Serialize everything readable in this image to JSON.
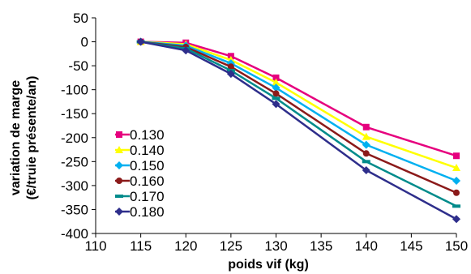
{
  "chart_data": {
    "type": "line",
    "xlabel": "poids vif (kg)",
    "ylabel": [
      "variation de marge",
      "(€/truie présente/an)"
    ],
    "xlim": [
      110,
      150
    ],
    "ylim": [
      -400,
      50
    ],
    "xticks": [
      110,
      115,
      120,
      125,
      130,
      135,
      140,
      145,
      150
    ],
    "yticks": [
      50,
      0,
      -50,
      -100,
      -150,
      -200,
      -250,
      -300,
      -350,
      -400
    ],
    "grid": false,
    "legend_position": "left-middle",
    "x": [
      115,
      120,
      125,
      130,
      140,
      150
    ],
    "series": [
      {
        "name": "0.130",
        "color": "#E6007E",
        "marker": "square",
        "values": [
          0,
          -2,
          -30,
          -75,
          -178,
          -238
        ]
      },
      {
        "name": "0.140",
        "color": "#FFFF00",
        "marker": "triangle",
        "values": [
          0,
          -5,
          -38,
          -85,
          -198,
          -263
        ]
      },
      {
        "name": "0.150",
        "color": "#00B0F0",
        "marker": "diamond",
        "values": [
          0,
          -8,
          -45,
          -96,
          -215,
          -290
        ]
      },
      {
        "name": "0.160",
        "color": "#8B1A1A",
        "marker": "circle",
        "values": [
          0,
          -11,
          -52,
          -108,
          -233,
          -315
        ]
      },
      {
        "name": "0.170",
        "color": "#008B8B",
        "marker": "dash",
        "values": [
          0,
          -14,
          -60,
          -118,
          -250,
          -343
        ]
      },
      {
        "name": "0.180",
        "color": "#2E2E8B",
        "marker": "diamond",
        "values": [
          0,
          -18,
          -67,
          -130,
          -268,
          -370
        ]
      }
    ]
  }
}
